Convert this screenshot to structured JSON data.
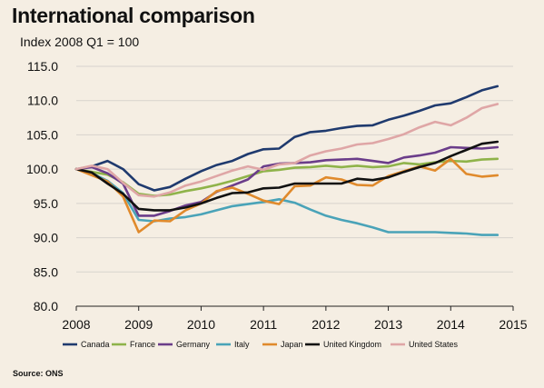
{
  "chart_data": {
    "type": "line",
    "title": "International comparison",
    "subtitle": "Index 2008 Q1 = 100",
    "source": "Source: ONS",
    "x_ticks": [
      "2008",
      "2009",
      "2010",
      "2011",
      "2012",
      "2013",
      "2014",
      "2015"
    ],
    "y_ticks": [
      "80.0",
      "85.0",
      "90.0",
      "95.0",
      "100.0",
      "105.0",
      "110.0",
      "115.0"
    ],
    "xlim": [
      2008,
      2015
    ],
    "ylim": [
      80,
      115
    ],
    "grid": true,
    "legend_position": "bottom",
    "x": [
      2008.0,
      2008.25,
      2008.5,
      2008.75,
      2009.0,
      2009.25,
      2009.5,
      2009.75,
      2010.0,
      2010.25,
      2010.5,
      2010.75,
      2011.0,
      2011.25,
      2011.5,
      2011.75,
      2012.0,
      2012.25,
      2012.5,
      2012.75,
      2013.0,
      2013.25,
      2013.5,
      2013.75,
      2014.0,
      2014.25,
      2014.5,
      2014.75
    ],
    "series": [
      {
        "name": "Canada",
        "color": "#1f3a6e",
        "values": [
          100.0,
          100.4,
          101.2,
          100.0,
          97.8,
          96.9,
          97.4,
          98.6,
          99.7,
          100.6,
          101.2,
          102.2,
          102.9,
          103.0,
          104.7,
          105.4,
          105.6,
          106.0,
          106.3,
          106.4,
          107.2,
          107.8,
          108.5,
          109.3,
          109.6,
          110.5,
          111.5,
          112.1
        ]
      },
      {
        "name": "France",
        "color": "#8fb34a",
        "values": [
          100.0,
          99.6,
          99.2,
          98.1,
          96.4,
          96.1,
          96.3,
          96.8,
          97.2,
          97.7,
          98.3,
          99.0,
          99.7,
          99.9,
          100.2,
          100.3,
          100.5,
          100.3,
          100.5,
          100.3,
          100.4,
          100.9,
          100.7,
          101.0,
          101.2,
          101.1,
          101.4,
          101.5
        ]
      },
      {
        "name": "Germany",
        "color": "#6b3d8a",
        "values": [
          100.0,
          100.3,
          99.4,
          97.9,
          93.2,
          93.2,
          93.9,
          94.7,
          95.2,
          96.7,
          97.6,
          98.5,
          100.4,
          100.8,
          100.9,
          101.0,
          101.3,
          101.4,
          101.5,
          101.2,
          100.9,
          101.7,
          102.0,
          102.4,
          103.2,
          103.1,
          103.0,
          103.2
        ]
      },
      {
        "name": "Italy",
        "color": "#4aa3b8",
        "values": [
          100.0,
          99.4,
          98.3,
          96.5,
          92.6,
          92.4,
          92.8,
          93.0,
          93.4,
          94.0,
          94.6,
          94.9,
          95.2,
          95.6,
          95.1,
          94.1,
          93.2,
          92.6,
          92.1,
          91.5,
          90.8,
          90.8,
          90.8,
          90.8,
          90.7,
          90.6,
          90.4,
          90.4
        ]
      },
      {
        "name": "Japan",
        "color": "#e08a2c",
        "values": [
          100.0,
          99.1,
          98.2,
          96.0,
          90.8,
          92.5,
          92.4,
          94.0,
          95.0,
          96.8,
          97.3,
          96.4,
          95.4,
          94.9,
          97.5,
          97.6,
          98.8,
          98.5,
          97.7,
          97.6,
          99.0,
          99.7,
          100.4,
          99.8,
          101.5,
          99.3,
          98.9,
          99.1
        ]
      },
      {
        "name": "United Kingdom",
        "color": "#111111",
        "values": [
          100.0,
          99.5,
          97.9,
          96.4,
          94.2,
          94.0,
          94.0,
          94.4,
          95.0,
          95.8,
          96.5,
          96.6,
          97.2,
          97.3,
          97.9,
          97.9,
          97.9,
          97.9,
          98.6,
          98.4,
          98.8,
          99.6,
          100.3,
          100.9,
          101.9,
          102.8,
          103.7,
          104.0
        ]
      },
      {
        "name": "United States",
        "color": "#dfa6a6",
        "values": [
          100.0,
          100.5,
          100.0,
          98.0,
          96.2,
          96.0,
          96.6,
          97.6,
          98.2,
          99.0,
          99.8,
          100.4,
          99.9,
          100.7,
          100.9,
          102.0,
          102.6,
          103.0,
          103.6,
          103.8,
          104.4,
          105.1,
          106.1,
          106.9,
          106.4,
          107.5,
          108.9,
          109.5
        ]
      }
    ]
  }
}
